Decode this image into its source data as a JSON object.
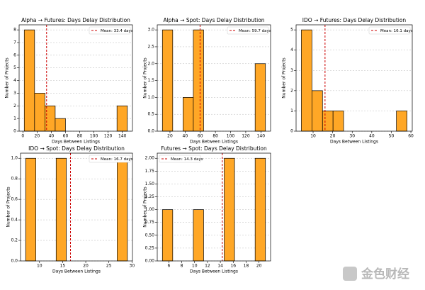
{
  "chart_data": [
    {
      "type": "histogram",
      "title": "Alpha → Futures: Days Delay Distribution",
      "x_label": "Days Between Listings",
      "y_label": "Number of Projects",
      "bins": [
        2,
        16.5,
        31,
        45.5,
        60,
        74.5,
        89,
        103.5,
        118,
        132.5,
        147
      ],
      "values": [
        8,
        3,
        2,
        1,
        0,
        0,
        0,
        0,
        0,
        2
      ],
      "color": "#ffa726",
      "xlim": [
        -5.25,
        154.25
      ],
      "ylim": [
        0,
        8.4
      ],
      "xticks": [
        0,
        20,
        40,
        60,
        80,
        100,
        120,
        140
      ],
      "yticks": [
        0,
        1,
        2,
        3,
        4,
        5,
        6,
        7,
        8
      ],
      "grid": true,
      "mean": 33.4,
      "mean_label": "Mean: 33.4 days",
      "mean_color": "#cc0000",
      "legend": "upper right"
    },
    {
      "type": "histogram",
      "title": "Alpha → Spot: Days Delay Distribution",
      "x_label": "Days Between Listings",
      "y_label": "Number of Projects",
      "bins": [
        10,
        23.6,
        37.2,
        50.8,
        64.4,
        78,
        91.6,
        105.2,
        118.8,
        132.4,
        146
      ],
      "values": [
        3,
        0,
        1,
        3,
        0,
        0,
        0,
        0,
        0,
        2
      ],
      "color": "#ffa726",
      "xlim": [
        3.2,
        152.8
      ],
      "ylim": [
        0,
        3.15
      ],
      "xticks": [
        20,
        40,
        60,
        80,
        100,
        120,
        140
      ],
      "yticks": [
        {
          "value": 0,
          "label": "0.0"
        },
        {
          "value": 0.5,
          "label": "0.5"
        },
        {
          "value": 1,
          "label": "1.0"
        },
        {
          "value": 1.5,
          "label": "1.5"
        },
        {
          "value": 2,
          "label": "2.0"
        },
        {
          "value": 2.5,
          "label": "2.5"
        },
        {
          "value": 3,
          "label": "3.0"
        }
      ],
      "grid": true,
      "mean": 59.7,
      "mean_label": "Mean: 59.7 days",
      "mean_color": "#cc0000",
      "legend": "upper right"
    },
    {
      "type": "histogram",
      "title": "IDO → Futures: Days Delay Distribution",
      "x_label": "Days Between Listings",
      "y_label": "Number of Projects",
      "bins": [
        4,
        9.4,
        14.8,
        20.2,
        25.6,
        31,
        36.4,
        41.8,
        47.2,
        52.6,
        58
      ],
      "values": [
        5,
        2,
        1,
        1,
        0,
        0,
        0,
        0,
        0,
        1
      ],
      "color": "#ffa726",
      "xlim": [
        1.3,
        60.7
      ],
      "ylim": [
        0,
        5.25
      ],
      "xticks": [
        10,
        20,
        30,
        40,
        50,
        60
      ],
      "yticks": [
        0,
        1,
        2,
        3,
        4,
        5
      ],
      "grid": true,
      "mean": 16.1,
      "mean_label": "Mean: 16.1 days",
      "mean_color": "#cc0000",
      "legend": "upper right"
    },
    {
      "type": "histogram",
      "title": "IDO → Spot: Days Delay Distribution",
      "x_label": "Days Between Listings",
      "y_label": "Number of Projects",
      "bins": [
        7,
        9.2,
        11.4,
        13.6,
        15.8,
        18,
        20.2,
        22.4,
        24.6,
        26.8,
        29
      ],
      "values": [
        1,
        0,
        0,
        1,
        0,
        0,
        0,
        0,
        0,
        1
      ],
      "color": "#ffa726",
      "xlim": [
        5.9,
        30.1
      ],
      "ylim": [
        0,
        1.05
      ],
      "xticks": [
        10,
        15,
        20,
        25,
        30
      ],
      "yticks": [
        {
          "value": 0,
          "label": "0.0"
        },
        {
          "value": 0.2,
          "label": "0.2"
        },
        {
          "value": 0.4,
          "label": "0.4"
        },
        {
          "value": 0.6,
          "label": "0.6"
        },
        {
          "value": 0.8,
          "label": "0.8"
        },
        {
          "value": 1,
          "label": "1.0"
        }
      ],
      "grid": true,
      "mean": 16.7,
      "mean_label": "Mean: 16.7 days",
      "mean_color": "#cc0000",
      "legend": "upper right"
    },
    {
      "type": "histogram",
      "title": "Futures → Spot: Days Delay Distribution",
      "x_label": "Days Between Listings",
      "y_label": "Number of Projects",
      "bins": [
        5,
        6.6,
        8.2,
        9.8,
        11.4,
        13,
        14.6,
        16.2,
        17.8,
        19.4,
        21
      ],
      "values": [
        1,
        0,
        0,
        1,
        0,
        0,
        2,
        0,
        0,
        2
      ],
      "color": "#ffa726",
      "xlim": [
        4.2,
        21.8
      ],
      "ylim": [
        0,
        2.1
      ],
      "xticks": [
        6,
        8,
        10,
        12,
        14,
        16,
        18,
        20
      ],
      "yticks": [
        {
          "value": 0,
          "label": "0.00"
        },
        {
          "value": 0.25,
          "label": "0.25"
        },
        {
          "value": 0.5,
          "label": "0.50"
        },
        {
          "value": 0.75,
          "label": "0.75"
        },
        {
          "value": 1,
          "label": "1.00"
        },
        {
          "value": 1.25,
          "label": "1.25"
        },
        {
          "value": 1.5,
          "label": "1.50"
        },
        {
          "value": 1.75,
          "label": "1.75"
        },
        {
          "value": 2,
          "label": "2.00"
        }
      ],
      "grid": true,
      "mean": 14.3,
      "mean_label": "Mean: 14.3 days",
      "mean_color": "#cc0000",
      "legend": "upper left"
    }
  ],
  "watermark": "金色财经"
}
